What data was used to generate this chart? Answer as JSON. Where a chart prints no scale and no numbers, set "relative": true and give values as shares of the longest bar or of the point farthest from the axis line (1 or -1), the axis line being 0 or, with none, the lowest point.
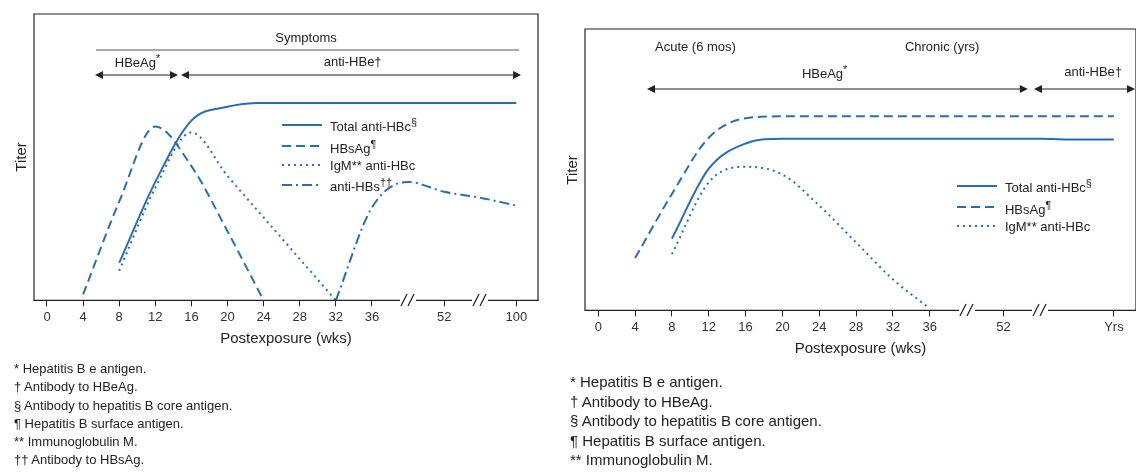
{
  "chart_data": [
    {
      "type": "line",
      "xlabel": "Postexposure (wks)",
      "ylabel": "Titer",
      "relative": true,
      "grid": false,
      "marker": "none",
      "legend": "right",
      "categories": [
        "0",
        "4",
        "8",
        "12",
        "16",
        "20",
        "24",
        "28",
        "32",
        "36",
        null,
        "52",
        null,
        "100"
      ],
      "series": [
        {
          "name": "Total anti-HBc$^{§}$",
          "color": "#2a6db5",
          "line_style": "solid",
          "values": [
            null,
            null,
            0.19,
            0.6,
            0.91,
            0.98,
            1,
            1,
            1,
            1,
            1,
            1,
            1,
            1
          ]
        },
        {
          "name": "HBsAg$^{¶}$",
          "color": "#2a6db5",
          "line_style": "dashed",
          "values": [
            null,
            0.03,
            0.5,
            0.88,
            0.68,
            0.35,
            0,
            null,
            null,
            null,
            null,
            null,
            null,
            null
          ]
        },
        {
          "name": "IgM** anti-HBc",
          "color": "#2a6db5",
          "line_style": "dotted",
          "values": [
            null,
            null,
            0.15,
            0.57,
            0.85,
            0.63,
            0.42,
            0.21,
            0,
            null,
            null,
            null,
            null,
            null
          ]
        },
        {
          "name": "anti-HBs$^{††}$",
          "color": "#2a6db5",
          "line_style": "dashdot",
          "values": [
            null,
            null,
            null,
            null,
            null,
            null,
            null,
            null,
            0,
            0.47,
            0.6,
            0.55,
            0.52,
            0.48
          ]
        }
      ],
      "annotations": [
        "Symptoms",
        "HBeAg$^{*}$",
        "anti-HBe†",
        "* Hepatitis B e antigen.",
        "† Antibody to HBeAg.",
        "§ Antibody to hepatitis B core antigen.",
        "¶ Hepatitis B surface antigen.",
        "** Immunoglobulin M.",
        "†† Antibody to HBsAg."
      ]
    },
    {
      "type": "line",
      "xlabel": "Postexposure (wks)",
      "ylabel": "Titer",
      "relative": true,
      "grid": false,
      "marker": "none",
      "legend": "right",
      "categories": [
        "0",
        "4",
        "8",
        "12",
        "16",
        "20",
        "24",
        "28",
        "32",
        "36",
        null,
        "52",
        null,
        null,
        "Yrs"
      ],
      "series": [
        {
          "name": "Total anti-HBc$^{§}$",
          "color": "#2a6db5",
          "line_style": "solid",
          "values": [
            null,
            null,
            0.37,
            0.73,
            0.86,
            0.885,
            0.885,
            0.885,
            0.885,
            0.885,
            0.885,
            0.885,
            0.885,
            0.88,
            0.88
          ]
        },
        {
          "name": "HBsAg$^{¶}$",
          "color": "#2a6db5",
          "line_style": "dashed",
          "values": [
            null,
            0.27,
            0.6,
            0.89,
            0.99,
            1,
            1,
            1,
            1,
            1,
            1,
            1,
            1,
            1,
            1
          ]
        },
        {
          "name": "IgM** anti-HBc",
          "color": "#2a6db5",
          "line_style": "dotted",
          "values": [
            null,
            null,
            0.29,
            0.66,
            0.74,
            0.7,
            0.54,
            0.35,
            0.16,
            0.01,
            null,
            null,
            null,
            null,
            null
          ]
        }
      ],
      "annotations": [
        "Acute (6 mos)",
        "Chronic (yrs)",
        "HBeAg$^{*}$",
        "anti-HBe†",
        "* Hepatitis B e antigen.",
        "† Antibody to HBeAg.",
        "§ Antibody to hepatitis B core antigen.",
        "¶ Hepatitis B surface antigen.",
        "** Immunoglobulin M."
      ]
    }
  ]
}
